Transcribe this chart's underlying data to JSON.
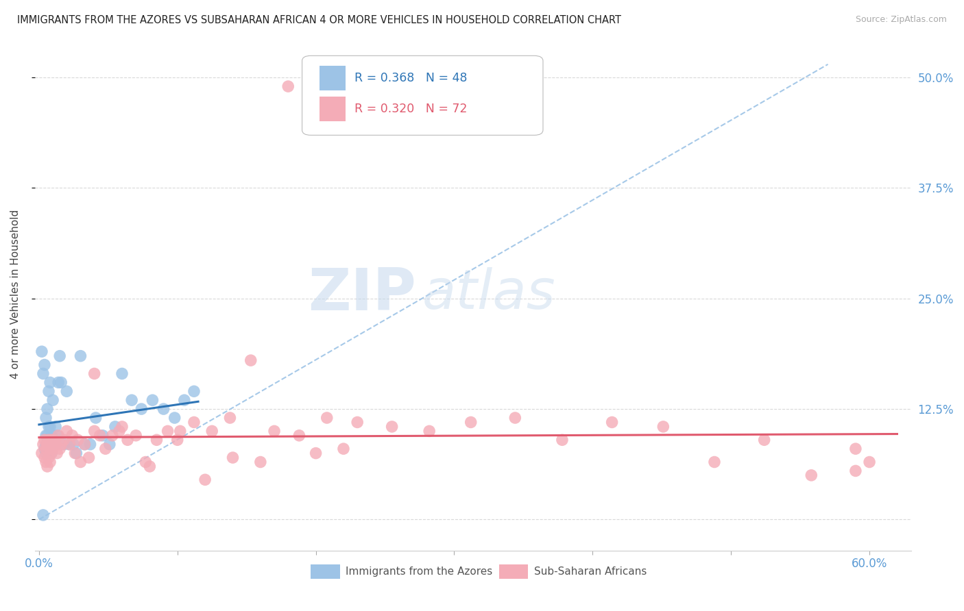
{
  "title": "IMMIGRANTS FROM THE AZORES VS SUBSAHARAN AFRICAN 4 OR MORE VEHICLES IN HOUSEHOLD CORRELATION CHART",
  "source": "Source: ZipAtlas.com",
  "ylabel": "4 or more Vehicles in Household",
  "background_color": "#ffffff",
  "grid_color": "#d9d9d9",
  "axis_label_color": "#5b9bd5",
  "legend_labels": [
    "Immigrants from the Azores",
    "Sub-Saharan Africans"
  ],
  "legend_R": [
    0.368,
    0.32
  ],
  "legend_N": [
    48,
    72
  ],
  "blue_color": "#9dc3e6",
  "pink_color": "#f4acb7",
  "blue_line_color": "#2e75b6",
  "pink_line_color": "#e05a6e",
  "dashed_line_color": "#9dc3e6",
  "xlim": [
    -0.003,
    0.63
  ],
  "ylim": [
    -0.035,
    0.545
  ],
  "x_ticks": [
    0.0,
    0.1,
    0.2,
    0.3,
    0.4,
    0.5,
    0.6
  ],
  "y_ticks": [
    0.0,
    0.125,
    0.25,
    0.375,
    0.5
  ],
  "azores_x": [
    0.002,
    0.003,
    0.003,
    0.004,
    0.004,
    0.005,
    0.005,
    0.005,
    0.005,
    0.006,
    0.006,
    0.006,
    0.007,
    0.007,
    0.007,
    0.008,
    0.008,
    0.008,
    0.009,
    0.009,
    0.01,
    0.01,
    0.011,
    0.012,
    0.013,
    0.014,
    0.015,
    0.016,
    0.018,
    0.02,
    0.022,
    0.025,
    0.027,
    0.03,
    0.033,
    0.037,
    0.041,
    0.046,
    0.051,
    0.055,
    0.06,
    0.067,
    0.074,
    0.082,
    0.09,
    0.098,
    0.105,
    0.112
  ],
  "azores_y": [
    0.19,
    0.165,
    0.005,
    0.175,
    0.08,
    0.115,
    0.095,
    0.085,
    0.075,
    0.125,
    0.095,
    0.085,
    0.145,
    0.105,
    0.085,
    0.155,
    0.105,
    0.085,
    0.095,
    0.075,
    0.135,
    0.085,
    0.085,
    0.105,
    0.095,
    0.155,
    0.185,
    0.155,
    0.085,
    0.145,
    0.085,
    0.085,
    0.075,
    0.185,
    0.085,
    0.085,
    0.115,
    0.095,
    0.085,
    0.105,
    0.165,
    0.135,
    0.125,
    0.135,
    0.125,
    0.115,
    0.135,
    0.145
  ],
  "subsaharan_x": [
    0.002,
    0.003,
    0.004,
    0.004,
    0.005,
    0.005,
    0.006,
    0.006,
    0.007,
    0.007,
    0.008,
    0.008,
    0.009,
    0.009,
    0.01,
    0.011,
    0.012,
    0.013,
    0.014,
    0.015,
    0.016,
    0.018,
    0.02,
    0.022,
    0.024,
    0.026,
    0.028,
    0.03,
    0.033,
    0.036,
    0.04,
    0.044,
    0.048,
    0.053,
    0.058,
    0.064,
    0.07,
    0.077,
    0.085,
    0.093,
    0.102,
    0.112,
    0.125,
    0.138,
    0.153,
    0.17,
    0.188,
    0.208,
    0.23,
    0.255,
    0.282,
    0.312,
    0.344,
    0.378,
    0.414,
    0.451,
    0.488,
    0.524,
    0.558,
    0.59,
    0.04,
    0.06,
    0.08,
    0.1,
    0.12,
    0.14,
    0.16,
    0.18,
    0.2,
    0.22,
    0.59,
    0.6
  ],
  "subsaharan_y": [
    0.075,
    0.085,
    0.07,
    0.09,
    0.065,
    0.08,
    0.085,
    0.06,
    0.09,
    0.07,
    0.08,
    0.065,
    0.09,
    0.075,
    0.08,
    0.09,
    0.085,
    0.075,
    0.095,
    0.08,
    0.085,
    0.09,
    0.1,
    0.085,
    0.095,
    0.075,
    0.09,
    0.065,
    0.085,
    0.07,
    0.1,
    0.095,
    0.08,
    0.095,
    0.1,
    0.09,
    0.095,
    0.065,
    0.09,
    0.1,
    0.1,
    0.11,
    0.1,
    0.115,
    0.18,
    0.1,
    0.095,
    0.115,
    0.11,
    0.105,
    0.1,
    0.11,
    0.115,
    0.09,
    0.11,
    0.105,
    0.065,
    0.09,
    0.05,
    0.08,
    0.165,
    0.105,
    0.06,
    0.09,
    0.045,
    0.07,
    0.065,
    0.49,
    0.075,
    0.08,
    0.055,
    0.065
  ]
}
